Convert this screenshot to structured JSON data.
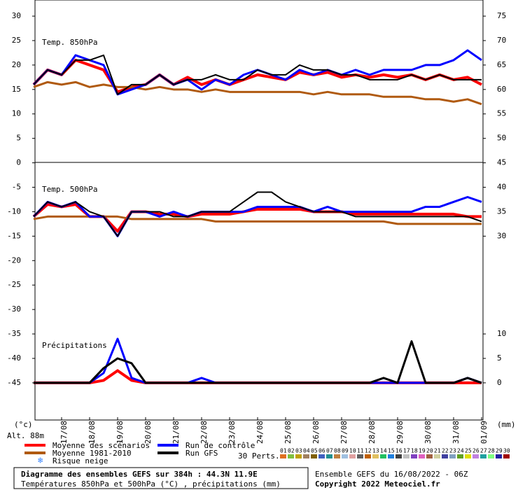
{
  "chart_data": [
    {
      "type": "line",
      "title": "Temp. 850hPa",
      "categories": [
        null,
        null,
        "17/08",
        null,
        "18/08",
        null,
        "19/08",
        null,
        "20/08",
        null,
        "21/08",
        null,
        "22/08",
        null,
        "23/08",
        null,
        "24/08",
        null,
        "25/08",
        null,
        "26/08",
        null,
        "27/08",
        null,
        "28/08",
        null,
        "29/08",
        null,
        "30/08",
        null,
        "31/08",
        null,
        "01/09"
      ],
      "ylim": [
        -52.6,
        33.3
      ],
      "yticks": [
        30,
        25,
        20,
        15,
        10,
        5,
        0,
        -5,
        -10,
        -15,
        -20,
        -25,
        -30,
        -35,
        -40,
        -45
      ],
      "y_unit_label": "(°c)",
      "series": [
        {
          "name": "Moyenne des scénarios",
          "color": "#ff0000",
          "values": [
            16,
            19,
            18,
            21,
            20,
            19,
            14.5,
            15.5,
            16,
            18,
            16,
            17.5,
            16,
            17,
            16,
            17,
            18,
            17.5,
            17,
            18.5,
            18,
            18.5,
            17.5,
            18,
            17.5,
            18,
            17.5,
            18,
            17,
            18,
            17,
            17.5,
            16
          ]
        },
        {
          "name": "Moyenne 1981-2010",
          "color": "#b05a10",
          "values": [
            15.5,
            16.5,
            16,
            16.5,
            15.5,
            16,
            15.5,
            15.5,
            15,
            15.5,
            15,
            15,
            14.5,
            15,
            14.5,
            14.5,
            14.5,
            14.5,
            14.5,
            14.5,
            14,
            14.5,
            14,
            14,
            14,
            13.5,
            13.5,
            13.5,
            13,
            13,
            12.5,
            13,
            12
          ]
        },
        {
          "name": "Run de contrôle",
          "color": "#0000ff",
          "values": [
            16,
            19,
            18,
            22,
            21,
            20,
            14,
            15,
            16,
            18,
            16,
            17,
            15,
            17,
            16,
            18,
            19,
            18,
            17,
            19,
            18,
            19,
            18,
            19,
            18,
            19,
            19,
            19,
            20,
            20,
            21,
            23,
            21
          ]
        },
        {
          "name": "Run GFS",
          "color": "#000000",
          "values": [
            16,
            19,
            18,
            21,
            21,
            22,
            14,
            16,
            16,
            18,
            16,
            17,
            17,
            18,
            17,
            17,
            19,
            18,
            18,
            20,
            19,
            19,
            18,
            18,
            17,
            17,
            17,
            18,
            17,
            18,
            17,
            17,
            17
          ]
        }
      ]
    },
    {
      "type": "line",
      "title": "Temp. 500hPa",
      "series": [
        {
          "color": "#ff0000",
          "values": [
            -11,
            -8.5,
            -9,
            -8.5,
            -11,
            -11,
            -14,
            -10,
            -10,
            -10.5,
            -10.5,
            -11,
            -10.5,
            -10.5,
            -10.5,
            -10,
            -9.5,
            -9.5,
            -9.5,
            -9.5,
            -10,
            -10,
            -10,
            -10.5,
            -10.5,
            -10.5,
            -10.5,
            -10.5,
            -10.5,
            -10.5,
            -10.5,
            -11,
            -11
          ]
        },
        {
          "color": "#b05a10",
          "values": [
            -11.5,
            -11,
            -11,
            -11,
            -11,
            -11,
            -11,
            -11.5,
            -11.5,
            -11.5,
            -11.5,
            -11.5,
            -11.5,
            -12,
            -12,
            -12,
            -12,
            -12,
            -12,
            -12,
            -12,
            -12,
            -12,
            -12,
            -12,
            -12,
            -12.5,
            -12.5,
            -12.5,
            -12.5,
            -12.5,
            -12.5,
            -12.5
          ]
        },
        {
          "color": "#0000ff",
          "values": [
            -11,
            -8,
            -9,
            -8,
            -11,
            -11,
            -15,
            -10,
            -10,
            -11,
            -10,
            -11,
            -10,
            -10,
            -10,
            -10,
            -9,
            -9,
            -9,
            -9,
            -10,
            -9,
            -10,
            -10,
            -10,
            -10,
            -10,
            -10,
            -9,
            -9,
            -8,
            -7,
            -8
          ]
        },
        {
          "color": "#000000",
          "values": [
            -11,
            -8,
            -9,
            -8,
            -10,
            -11,
            -15,
            -10,
            -10,
            -10,
            -11,
            -11,
            -10,
            -10,
            -10,
            -8,
            -6,
            -6,
            -8,
            -9,
            -10,
            -10,
            -10,
            -11,
            -11,
            -11,
            -11,
            -11,
            -11,
            -11,
            -11,
            -11,
            -12
          ]
        }
      ]
    },
    {
      "type": "line",
      "title": "Précipitations",
      "y2lim": [
        -7.6,
        78.3
      ],
      "y2ticks": [
        75,
        70,
        65,
        60,
        55,
        50,
        45,
        40,
        35,
        30,
        10,
        5,
        0
      ],
      "y2_unit_label": "(mm)",
      "series": [
        {
          "color": "#ff0000",
          "axis": "y2",
          "values": [
            0,
            0,
            0,
            0,
            0,
            0.5,
            2.5,
            0.5,
            0,
            0,
            0,
            0,
            0,
            0,
            0,
            0,
            0,
            0,
            0,
            0,
            0,
            0,
            0,
            0,
            0,
            0,
            0,
            0,
            0,
            0,
            0,
            0,
            0
          ]
        },
        {
          "color": "#0000ff",
          "axis": "y2",
          "values": [
            0,
            0,
            0,
            0,
            0,
            2,
            9,
            1,
            0,
            0,
            0,
            0,
            1,
            0,
            0,
            0,
            0,
            0,
            0,
            0,
            0,
            0,
            0,
            0,
            0,
            0,
            0,
            0,
            0,
            0,
            0,
            1,
            0
          ]
        },
        {
          "color": "#000000",
          "axis": "y2",
          "values": [
            0,
            0,
            0,
            0,
            0,
            3,
            5,
            4,
            0,
            0,
            0,
            0,
            0,
            0,
            0,
            0,
            0,
            0,
            0,
            0,
            0,
            0,
            0,
            0,
            0,
            1,
            0,
            8.5,
            0,
            0,
            0,
            1,
            0
          ]
        }
      ]
    }
  ],
  "altitude": "Alt. 88m",
  "snow_label": "Risque neige",
  "perturbations": {
    "label": "30 Perts.",
    "members": [
      {
        "label": "01",
        "color": "#e07020"
      },
      {
        "label": "02",
        "color": "#80c040"
      },
      {
        "label": "03",
        "color": "#c0a000"
      },
      {
        "label": "04",
        "color": "#a08060"
      },
      {
        "label": "05",
        "color": "#806000"
      },
      {
        "label": "06",
        "color": "#4060c0"
      },
      {
        "label": "07",
        "color": "#209090"
      },
      {
        "label": "08",
        "color": "#c08040"
      },
      {
        "label": "09",
        "color": "#a0c0e0"
      },
      {
        "label": "10",
        "color": "#e0a0a0"
      },
      {
        "label": "11",
        "color": "#606060"
      },
      {
        "label": "12",
        "color": "#c06000"
      },
      {
        "label": "13",
        "color": "#e0c060"
      },
      {
        "label": "14",
        "color": "#20c060"
      },
      {
        "label": "15",
        "color": "#2080e0"
      },
      {
        "label": "16",
        "color": "#404040"
      },
      {
        "label": "17",
        "color": "#c0c0c0"
      },
      {
        "label": "18",
        "color": "#8040c0"
      },
      {
        "label": "19",
        "color": "#e060c0"
      },
      {
        "label": "20",
        "color": "#a06040"
      },
      {
        "label": "21",
        "color": "#d0d0a0"
      },
      {
        "label": "22",
        "color": "#4040a0"
      },
      {
        "label": "23",
        "color": "#80a0c0"
      },
      {
        "label": "24",
        "color": "#60a020"
      },
      {
        "label": "25",
        "color": "#e0e000"
      },
      {
        "label": "26",
        "color": "#c080e0"
      },
      {
        "label": "27",
        "color": "#20a0a0"
      },
      {
        "label": "28",
        "color": "#80ff80"
      },
      {
        "label": "29",
        "color": "#2020a0"
      },
      {
        "label": "30",
        "color": "#a00000"
      }
    ]
  },
  "footer": {
    "title": "Diagramme des ensembles GEFS sur 384h : 44.3N 11.9E",
    "subtitle": "Températures 850hPa et 500hPa (°C) , précipitations (mm)",
    "run": "Ensemble GEFS du 16/08/2022 - 06Z",
    "copyright": "Copyright 2022 Meteociel.fr"
  }
}
